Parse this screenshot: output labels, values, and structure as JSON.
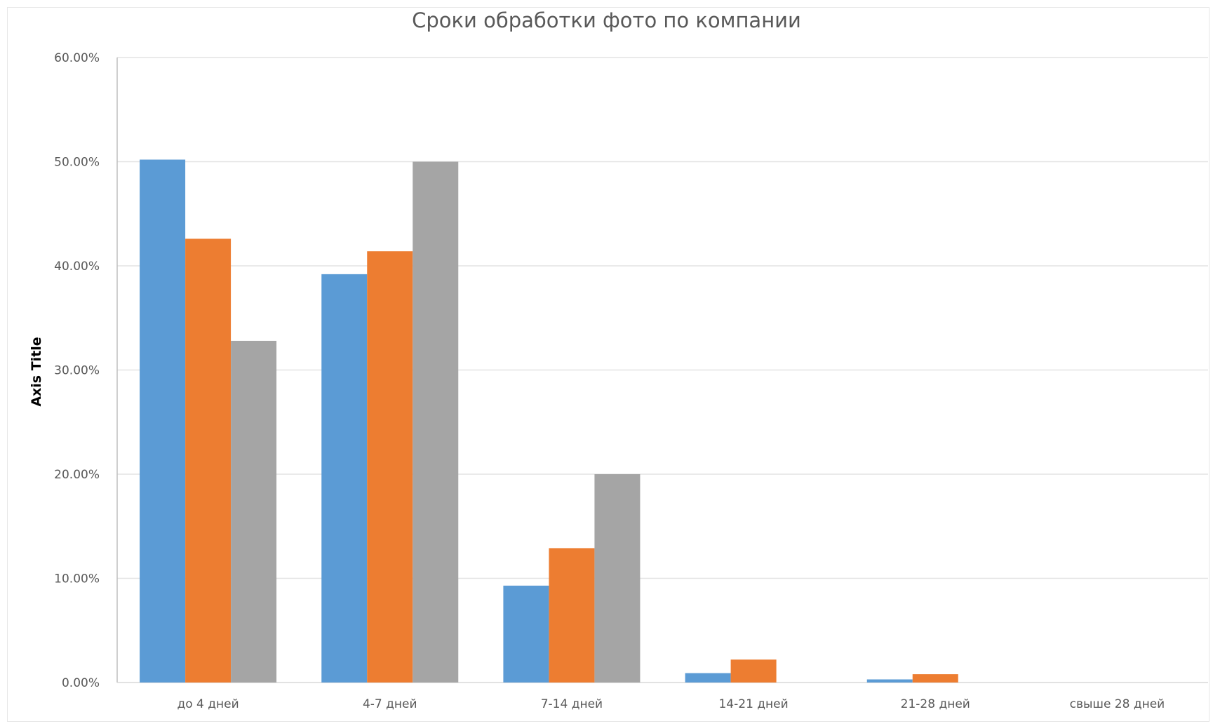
{
  "chart_data": {
    "type": "bar",
    "title": "Сроки обработки фото по компании",
    "xlabel": "",
    "ylabel": "Axis Title",
    "categories": [
      "до 4 дней",
      "4-7 дней",
      "7-14 дней",
      "14-21 дней",
      "21-28 дней",
      "свыше 28 дней"
    ],
    "series": [
      {
        "color": "#5B9BD5",
        "values": [
          50.2,
          39.2,
          9.3,
          0.9,
          0.3,
          0.0
        ]
      },
      {
        "color": "#ED7D31",
        "values": [
          42.6,
          41.4,
          12.9,
          2.2,
          0.8,
          0.0
        ]
      },
      {
        "color": "#A5A5A5",
        "values": [
          32.8,
          50.0,
          20.0,
          0.0,
          0.0,
          0.0
        ]
      }
    ],
    "y_ticks": [
      "0.00%",
      "10.00%",
      "20.00%",
      "30.00%",
      "40.00%",
      "50.00%",
      "60.00%"
    ],
    "ylim": [
      0,
      60
    ],
    "grid": true,
    "legend": "none"
  }
}
